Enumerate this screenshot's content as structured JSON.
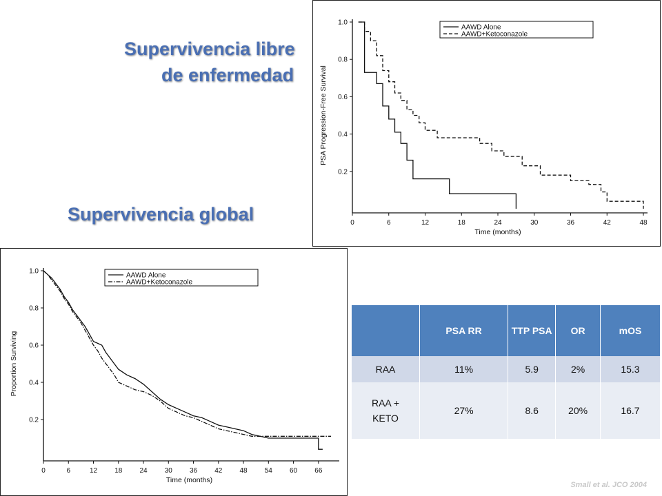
{
  "titles": {
    "pfs_line1": "Supervivencia libre",
    "pfs_line2": "de enfermedad",
    "os": "Supervivencia global"
  },
  "chart_data": [
    {
      "type": "line",
      "ylabel": "PSA Progression-Free Survival",
      "xlabel": "Time (months)",
      "xticks": [
        0,
        6,
        12,
        18,
        24,
        30,
        36,
        42,
        48
      ],
      "yticks": [
        0.2,
        0.4,
        0.6,
        0.8,
        1.0
      ],
      "xlim": [
        0,
        48
      ],
      "ylim": [
        0,
        1.0
      ],
      "legend": "top-right",
      "series": [
        {
          "name": "AAWD Alone",
          "style": "solid",
          "x": [
            1,
            2,
            2,
            4,
            4,
            5,
            5,
            6,
            6,
            7,
            7,
            8,
            8,
            9,
            9,
            10,
            10,
            16,
            16,
            27,
            27
          ],
          "y": [
            1.0,
            1.0,
            0.73,
            0.73,
            0.67,
            0.67,
            0.55,
            0.55,
            0.48,
            0.48,
            0.41,
            0.41,
            0.35,
            0.35,
            0.26,
            0.26,
            0.16,
            0.16,
            0.08,
            0.08,
            0.0
          ]
        },
        {
          "name": "AAWD+Ketoconazole",
          "style": "dashed",
          "x": [
            1,
            2,
            2,
            3,
            3,
            4,
            4,
            5,
            5,
            6,
            6,
            7,
            7,
            8,
            8,
            9,
            9,
            10,
            10,
            11,
            11,
            12,
            12,
            14,
            14,
            21,
            21,
            23,
            23,
            25,
            25,
            28,
            28,
            31,
            31,
            36,
            36,
            39,
            39,
            41,
            41,
            42,
            42,
            48,
            48
          ],
          "y": [
            1.0,
            1.0,
            0.95,
            0.95,
            0.9,
            0.9,
            0.82,
            0.82,
            0.74,
            0.74,
            0.68,
            0.68,
            0.62,
            0.62,
            0.58,
            0.58,
            0.53,
            0.53,
            0.5,
            0.5,
            0.46,
            0.46,
            0.42,
            0.42,
            0.38,
            0.38,
            0.35,
            0.35,
            0.31,
            0.31,
            0.28,
            0.28,
            0.23,
            0.23,
            0.18,
            0.18,
            0.15,
            0.15,
            0.13,
            0.13,
            0.09,
            0.09,
            0.04,
            0.04,
            0.0
          ]
        }
      ]
    },
    {
      "type": "line",
      "ylabel": "Proportion Surviving",
      "xlabel": "Time (months)",
      "xticks": [
        0,
        6,
        12,
        18,
        24,
        30,
        36,
        42,
        48,
        54,
        60,
        66
      ],
      "yticks": [
        0.2,
        0.4,
        0.6,
        0.8,
        1.0
      ],
      "xlim": [
        0,
        70
      ],
      "ylim": [
        0,
        1.0
      ],
      "legend": "top-right",
      "series": [
        {
          "name": "AAWD Alone",
          "style": "solid",
          "x": [
            0,
            1,
            2,
            3,
            4,
            5,
            6,
            7,
            8,
            9,
            10,
            11,
            12,
            14,
            15,
            16,
            17,
            18,
            20,
            22,
            24,
            26,
            28,
            30,
            32,
            34,
            36,
            38,
            40,
            42,
            44,
            46,
            48,
            50,
            52,
            54,
            60,
            66,
            66,
            67
          ],
          "y": [
            1.0,
            0.98,
            0.96,
            0.93,
            0.9,
            0.86,
            0.83,
            0.79,
            0.76,
            0.73,
            0.7,
            0.66,
            0.62,
            0.6,
            0.56,
            0.53,
            0.5,
            0.47,
            0.44,
            0.42,
            0.39,
            0.35,
            0.31,
            0.28,
            0.26,
            0.24,
            0.22,
            0.21,
            0.19,
            0.17,
            0.16,
            0.15,
            0.14,
            0.12,
            0.11,
            0.1,
            0.1,
            0.1,
            0.04,
            0.04
          ]
        },
        {
          "name": "AAWD+Ketoconazole",
          "style": "dash-dot",
          "x": [
            0,
            1,
            2,
            3,
            4,
            5,
            6,
            7,
            8,
            9,
            10,
            11,
            12,
            13,
            14,
            15,
            16,
            17,
            18,
            20,
            22,
            24,
            26,
            28,
            30,
            32,
            34,
            36,
            38,
            40,
            42,
            44,
            46,
            48,
            50,
            52,
            54,
            60,
            66,
            69
          ],
          "y": [
            1.0,
            0.98,
            0.95,
            0.92,
            0.89,
            0.85,
            0.82,
            0.78,
            0.75,
            0.72,
            0.68,
            0.64,
            0.6,
            0.57,
            0.53,
            0.5,
            0.47,
            0.44,
            0.4,
            0.38,
            0.36,
            0.35,
            0.33,
            0.3,
            0.26,
            0.24,
            0.22,
            0.21,
            0.19,
            0.17,
            0.15,
            0.14,
            0.13,
            0.12,
            0.11,
            0.11,
            0.11,
            0.11,
            0.11,
            0.11
          ]
        }
      ]
    }
  ],
  "table": {
    "headers": [
      "",
      "PSA RR",
      "TTP PSA",
      "OR",
      "mOS"
    ],
    "rows": [
      [
        "RAA",
        "11%",
        "5.9",
        "2%",
        "15.3"
      ],
      [
        "RAA + KETO",
        "27%",
        "8.6",
        "20%",
        "16.7"
      ]
    ]
  },
  "citation": "Small et al. JCO 2004"
}
